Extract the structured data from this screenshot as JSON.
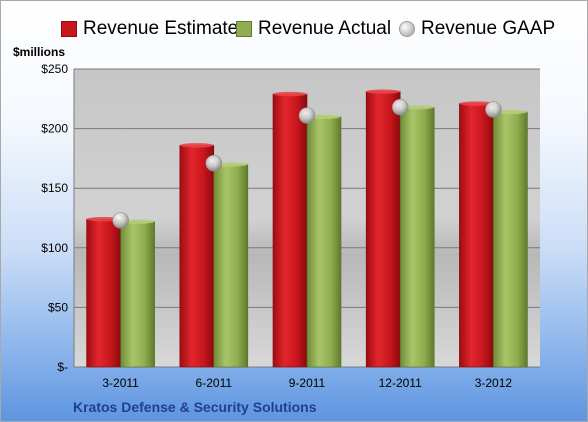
{
  "chart_data": {
    "type": "bar",
    "categories": [
      "3-2011",
      "6-2011",
      "9-2011",
      "12-2011",
      "3-2012"
    ],
    "series": [
      {
        "name": "Revenue Estimate",
        "values": [
          124,
          186,
          229,
          231,
          221
        ],
        "color": "#c8161d",
        "kind": "bar"
      },
      {
        "name": "Revenue Actual",
        "values": [
          122,
          170,
          210,
          218,
          214
        ],
        "color": "#8fae4f",
        "kind": "bar"
      },
      {
        "name": "Revenue GAAP",
        "values": [
          123,
          171,
          211,
          218,
          216
        ],
        "color": "#c0c0c0",
        "kind": "marker"
      }
    ],
    "ylabel": "$millions",
    "ylim": [
      0,
      250
    ],
    "yticks": [
      0,
      50,
      100,
      150,
      200,
      250
    ],
    "ytick_labels": [
      "$-",
      "$50",
      "$100",
      "$150",
      "$200",
      "$250"
    ],
    "grid": true,
    "legend_position": "top"
  },
  "footer": "Kratos Defense & Security Solutions"
}
